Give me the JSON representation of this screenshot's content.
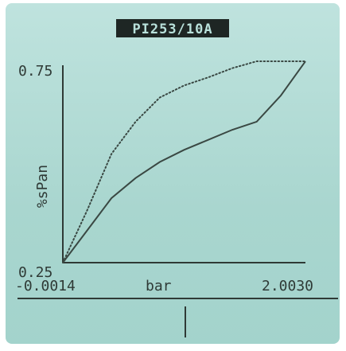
{
  "chart_data": {
    "type": "line",
    "title": "PI253/10A",
    "xlabel": "bar",
    "ylabel": "%sPan",
    "xlim": [
      -0.0014,
      2.003
    ],
    "ylim": [
      0.25,
      0.75
    ],
    "x_min_label": "-0.0014",
    "x_max_label": "2.0030",
    "y_max_label": "0.75",
    "y_min_label": "0.25",
    "grid": false,
    "series": [
      {
        "style": "dotted",
        "points": [
          [
            -0.0014,
            0.25
          ],
          [
            0.2,
            0.38
          ],
          [
            0.4,
            0.52
          ],
          [
            0.6,
            0.6
          ],
          [
            0.8,
            0.66
          ],
          [
            1.0,
            0.69
          ],
          [
            1.2,
            0.71
          ],
          [
            1.4,
            0.733
          ],
          [
            1.6,
            0.75
          ],
          [
            1.8,
            0.75
          ],
          [
            2.003,
            0.75
          ]
        ]
      },
      {
        "style": "solid",
        "points": [
          [
            -0.0014,
            0.25
          ],
          [
            0.2,
            0.33
          ],
          [
            0.4,
            0.41
          ],
          [
            0.6,
            0.46
          ],
          [
            0.8,
            0.5
          ],
          [
            1.0,
            0.53
          ],
          [
            1.2,
            0.555
          ],
          [
            1.4,
            0.58
          ],
          [
            1.6,
            0.6
          ],
          [
            1.8,
            0.665
          ],
          [
            2.003,
            0.75
          ]
        ]
      }
    ]
  },
  "colors": {
    "screen_bg": "#a9d6cf",
    "ink": "#2f3a36",
    "title_bg": "#1e2624",
    "title_fg": "#b9e1db"
  }
}
